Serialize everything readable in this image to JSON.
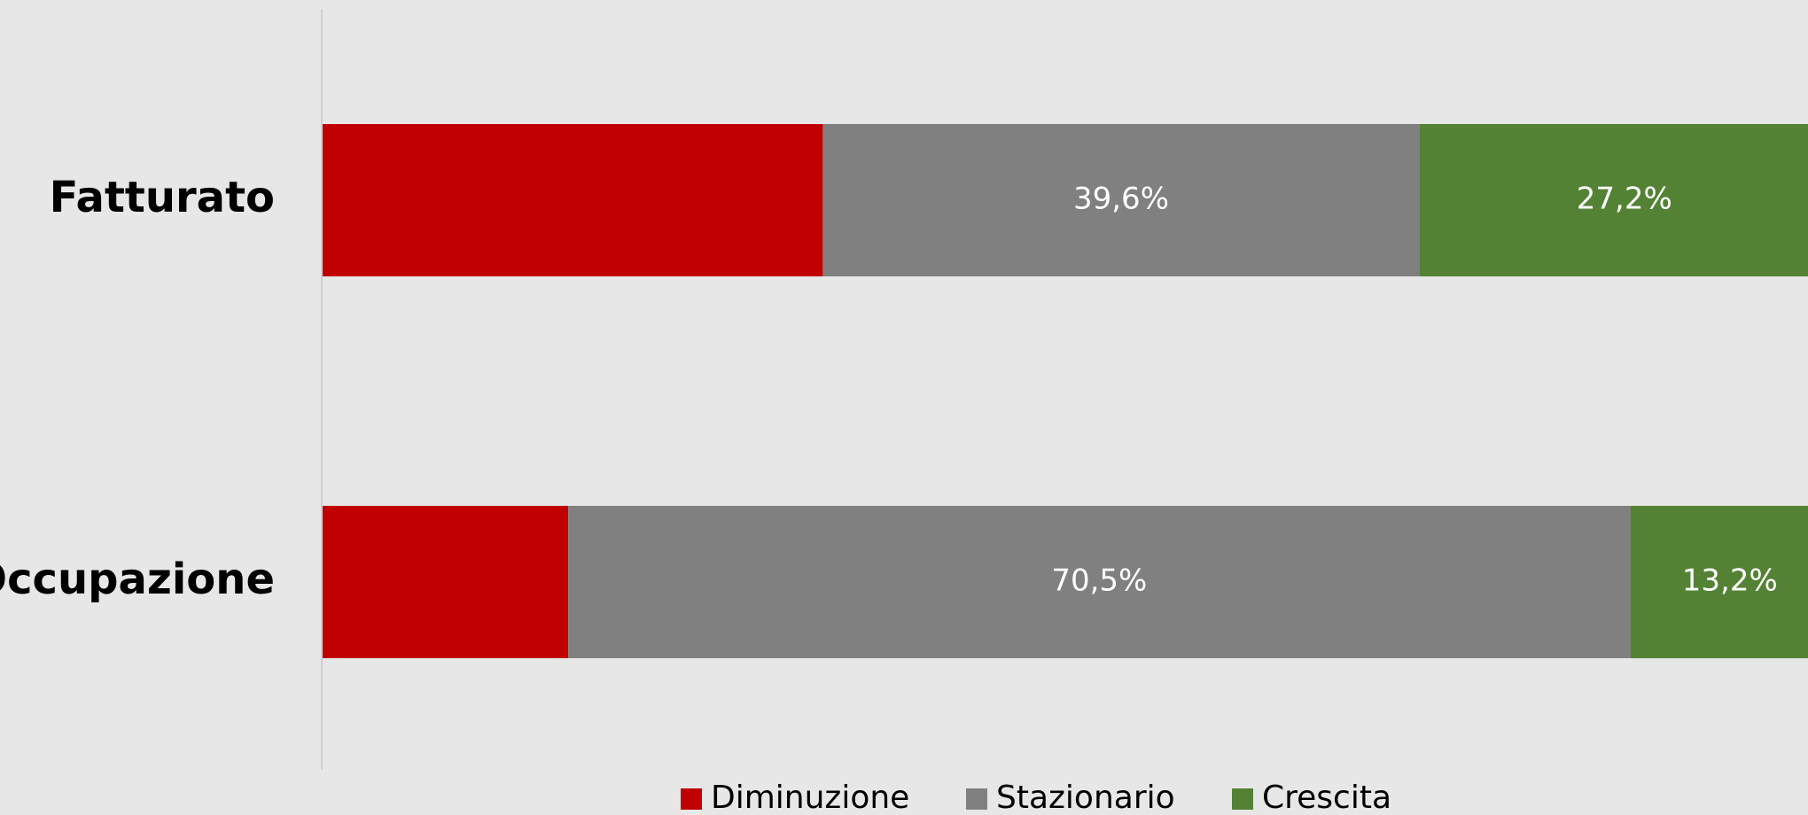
{
  "chart_data": {
    "type": "stacked-bar-horizontal",
    "categories": [
      "Fatturato",
      "Occupazione"
    ],
    "series": [
      {
        "name": "Diminuzione",
        "color": "#c00000",
        "values": [
          33.2,
          16.3
        ]
      },
      {
        "name": "Stazionario",
        "color": "#808080",
        "values": [
          39.6,
          70.5
        ],
        "value_labels": [
          "39,6%",
          "70,5%"
        ]
      },
      {
        "name": "Crescita",
        "color": "#548235",
        "values": [
          27.2,
          13.2
        ],
        "value_labels": [
          "27,2%",
          "13,2%"
        ]
      }
    ],
    "xlim": [
      0,
      100
    ],
    "legend": "bottom"
  }
}
